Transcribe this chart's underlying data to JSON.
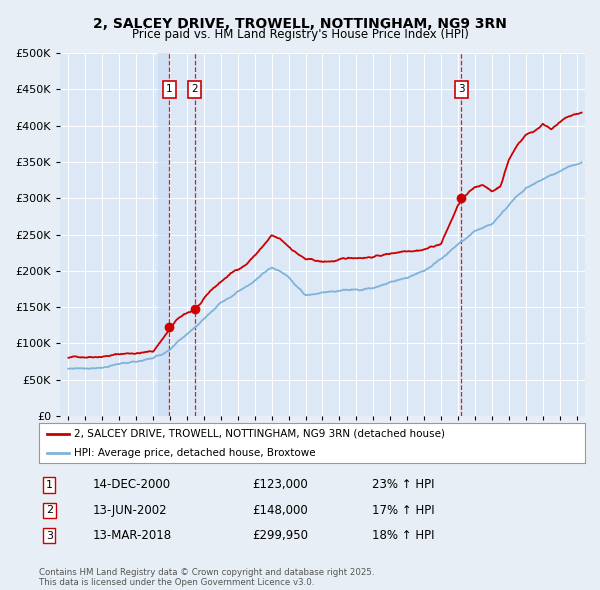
{
  "title": "2, SALCEY DRIVE, TROWELL, NOTTINGHAM, NG9 3RN",
  "subtitle": "Price paid vs. HM Land Registry's House Price Index (HPI)",
  "bg_color": "#e8eef5",
  "plot_bg_color": "#dce8f5",
  "grid_color": "#ffffff",
  "legend_line1": "2, SALCEY DRIVE, TROWELL, NOTTINGHAM, NG9 3RN (detached house)",
  "legend_line2": "HPI: Average price, detached house, Broxtowe",
  "footer": "Contains HM Land Registry data © Crown copyright and database right 2025.\nThis data is licensed under the Open Government Licence v3.0.",
  "transactions": [
    {
      "num": 1,
      "date": "14-DEC-2000",
      "price": "£123,000",
      "pct": "23% ↑ HPI",
      "x": 2000.96
    },
    {
      "num": 2,
      "date": "13-JUN-2002",
      "price": "£148,000",
      "pct": "17% ↑ HPI",
      "x": 2002.45
    },
    {
      "num": 3,
      "date": "13-MAR-2018",
      "price": "£299,950",
      "pct": "18% ↑ HPI",
      "x": 2018.2
    }
  ],
  "transaction_prices": [
    123000,
    148000,
    299950
  ],
  "xlim": [
    1994.5,
    2025.5
  ],
  "ylim": [
    0,
    500000
  ],
  "yticks": [
    0,
    50000,
    100000,
    150000,
    200000,
    250000,
    300000,
    350000,
    400000,
    450000,
    500000
  ],
  "red_waypoints_x": [
    1995.0,
    1996.0,
    1997.0,
    1998.0,
    1999.0,
    2000.0,
    2000.96,
    2000.96,
    2001.5,
    2002.45,
    2002.45,
    2003.5,
    2004.5,
    2005.5,
    2006.5,
    2007.0,
    2007.5,
    2008.0,
    2009.0,
    2010.0,
    2011.0,
    2012.0,
    2013.0,
    2014.0,
    2015.0,
    2016.0,
    2017.0,
    2018.0,
    2018.2,
    2018.2,
    2019.0,
    2019.5,
    2020.0,
    2020.5,
    2021.0,
    2021.5,
    2022.0,
    2022.5,
    2023.0,
    2023.5,
    2024.0,
    2024.5,
    2025.0,
    2025.3
  ],
  "red_waypoints_y": [
    80000,
    82000,
    85000,
    88000,
    90000,
    92000,
    123000,
    123000,
    138000,
    148000,
    148000,
    175000,
    195000,
    210000,
    235000,
    248000,
    242000,
    232000,
    215000,
    210000,
    212000,
    215000,
    218000,
    222000,
    228000,
    232000,
    240000,
    292000,
    299950,
    299950,
    315000,
    320000,
    310000,
    318000,
    355000,
    375000,
    390000,
    395000,
    405000,
    400000,
    408000,
    415000,
    418000,
    420000
  ],
  "blue_waypoints_x": [
    1995.0,
    1996.0,
    1997.0,
    1998.0,
    1999.0,
    2000.0,
    2001.0,
    2002.0,
    2003.0,
    2004.0,
    2005.0,
    2006.0,
    2007.0,
    2007.5,
    2008.0,
    2009.0,
    2010.0,
    2011.0,
    2012.0,
    2013.0,
    2014.0,
    2015.0,
    2016.0,
    2017.0,
    2018.0,
    2019.0,
    2020.0,
    2021.0,
    2022.0,
    2023.0,
    2024.0,
    2025.3
  ],
  "blue_waypoints_y": [
    65000,
    67000,
    70000,
    73000,
    76000,
    82000,
    92000,
    112000,
    135000,
    158000,
    175000,
    192000,
    210000,
    205000,
    198000,
    172000,
    175000,
    178000,
    178000,
    182000,
    188000,
    195000,
    205000,
    222000,
    240000,
    258000,
    268000,
    295000,
    318000,
    330000,
    342000,
    350000
  ]
}
